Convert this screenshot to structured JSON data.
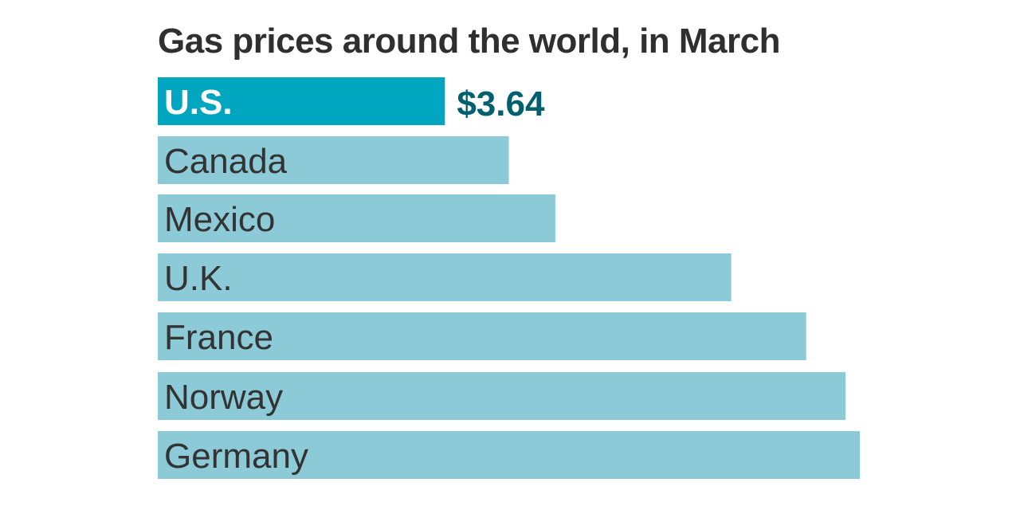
{
  "chart_data": {
    "type": "bar",
    "orientation": "horizontal",
    "title": "Gas prices around the world, in March",
    "xlabel": "",
    "ylabel": "",
    "grid": false,
    "legend": "none",
    "xlim": [
      0,
      8.9
    ],
    "categories": [
      "U.S.",
      "Canada",
      "Mexico",
      "U.K.",
      "France",
      "Norway",
      "Germany"
    ],
    "values": [
      3.64,
      4.45,
      5.04,
      7.27,
      8.22,
      8.72,
      8.9
    ],
    "highlight_index": 0,
    "annotations": [
      {
        "category": "U.S.",
        "text": "$3.64"
      }
    ]
  },
  "colors": {
    "highlight_bar": "#00a5bf",
    "bar": "#8ccad8",
    "highlight_label": "#ffffff",
    "label": "#333333",
    "annotation": "#00606e",
    "title": "#2f2f2f"
  }
}
